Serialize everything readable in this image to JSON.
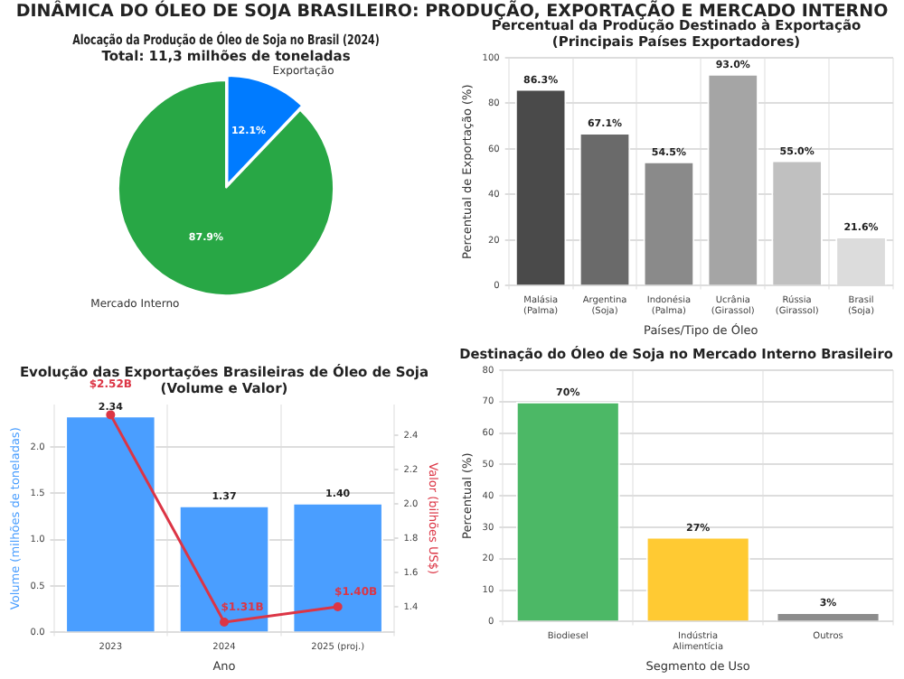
{
  "chart_data": [
    {
      "type": "other",
      "title": "DINÂMICA DO ÓLEO DE SOJA BRASILEIRO: PRODUÇÃO, EXPORTAÇÃO E MERCADO INTERNO"
    },
    {
      "type": "pie",
      "title": "Alocação da Produção de Óleo de Soja no Brasil (2024)\nTotal: 11,3 milhões de toneladas",
      "categories": [
        "Exportação",
        "Mercado Interno"
      ],
      "values": [
        12.1,
        87.9
      ],
      "colors": [
        "#007bff",
        "#28a745"
      ],
      "value_labels": [
        "12.1%",
        "87.9%"
      ],
      "legend": false
    },
    {
      "type": "bar",
      "title": "Percentual da Produção Destinado à Exportação\n(Principais Países Exportadores)",
      "xlabel": "Países/Tipo de Óleo",
      "ylabel": "Percentual de Exportação (%)",
      "categories": [
        "Malásia\n(Palma)",
        "Argentina\n(Soja)",
        "Indonésia\n(Palma)",
        "Ucrânia\n(Girassol)",
        "Rússia\n(Girassol)",
        "Brasil\n(Soja)"
      ],
      "values": [
        86.3,
        67.1,
        54.5,
        93.0,
        55.0,
        21.6
      ],
      "colors": [
        "#4a4a4a",
        "#6a6a6a",
        "#8a8a8a",
        "#a5a5a5",
        "#c0c0c0",
        "#dcdcdc"
      ],
      "value_labels": [
        "86.3%",
        "67.1%",
        "54.5%",
        "93.0%",
        "55.0%",
        "21.6%"
      ],
      "ylim": [
        0,
        100
      ],
      "yticks": [
        0,
        20,
        40,
        60,
        80,
        100
      ],
      "grid": true,
      "legend": false
    },
    {
      "type": "bar",
      "title": "Evolução das Exportações Brasileiras de Óleo de Soja\n(Volume e Valor)",
      "xlabel": "Ano",
      "ylabel": "Volume (milhões de toneladas)",
      "y2label": "Valor (bilhões US$)",
      "categories": [
        "2023",
        "2024",
        "2025 (proj.)"
      ],
      "series": [
        {
          "type": "bar",
          "color": "#4a9eff",
          "values": [
            2.34,
            1.37,
            1.4
          ],
          "value_labels": [
            "2.34",
            "1.37",
            "1.40"
          ]
        },
        {
          "type": "line",
          "axis": "y2",
          "color": "#dc3545",
          "values": [
            2.52,
            1.31,
            1.4
          ],
          "value_labels": [
            "$2.52B",
            "$1.31B",
            "$1.40B"
          ]
        }
      ],
      "ylim": [
        0,
        2.46
      ],
      "yticks": [
        {
          "value": 0,
          "label": "0.0"
        },
        0.5,
        {
          "value": 1,
          "label": "1.0"
        },
        1.5,
        {
          "value": 2,
          "label": "2.0"
        }
      ],
      "y2lim": [
        1.25,
        2.58
      ],
      "y2ticks": [
        1.4,
        1.6,
        1.8,
        {
          "value": 2,
          "label": "2.0"
        },
        2.2,
        2.4
      ],
      "marker": "circle",
      "grid": true,
      "legend": false
    },
    {
      "type": "bar",
      "title": "Destinação do Óleo de Soja no Mercado Interno Brasileiro",
      "xlabel": "Segmento de Uso",
      "ylabel": "Percentual (%)",
      "categories": [
        "Biodiesel",
        "Indústria\nAlimentícia",
        "Outros"
      ],
      "values": [
        70,
        27,
        3
      ],
      "colors": [
        "#4cb866",
        "#ffca33",
        "#8c8c8c"
      ],
      "value_labels": [
        "70%",
        "27%",
        "3%"
      ],
      "ylim": [
        0,
        80
      ],
      "yticks": [
        0,
        10,
        20,
        30,
        40,
        50,
        60,
        70,
        80
      ],
      "grid": true,
      "legend": false
    }
  ]
}
